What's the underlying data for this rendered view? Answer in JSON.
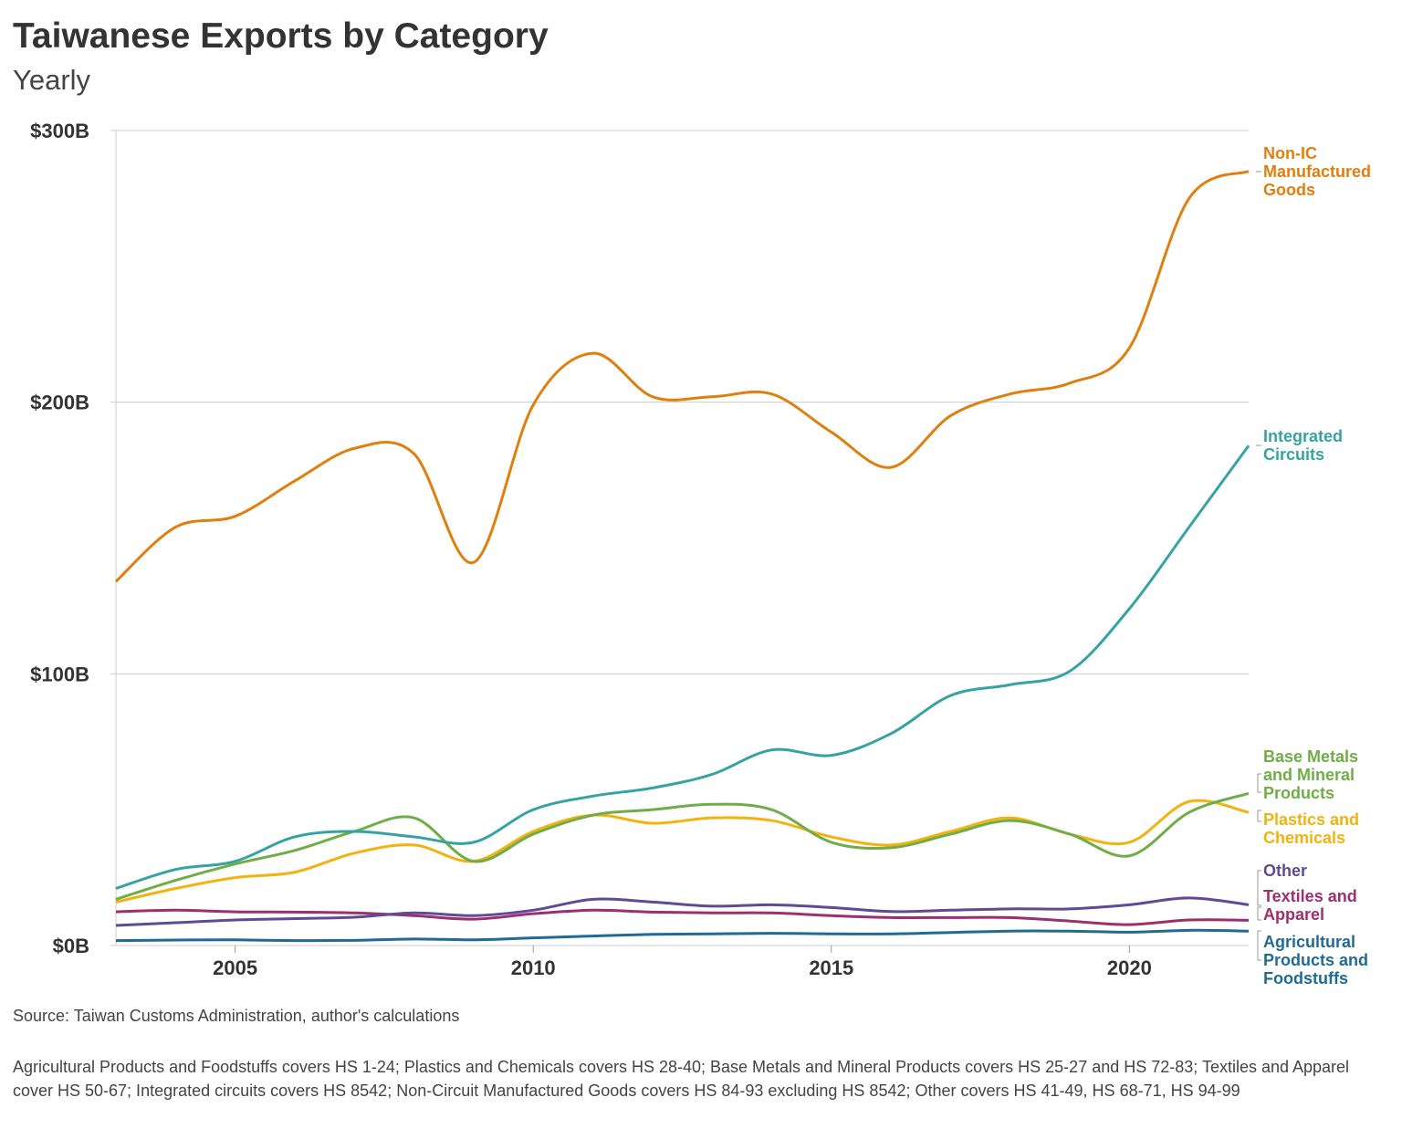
{
  "chart_data": {
    "type": "line",
    "title": "Taiwanese Exports by Category",
    "subtitle": "Yearly",
    "x": [
      2003,
      2004,
      2005,
      2006,
      2007,
      2008,
      2009,
      2010,
      2011,
      2012,
      2013,
      2014,
      2015,
      2016,
      2017,
      2018,
      2019,
      2020,
      2021,
      2022
    ],
    "xticks": [
      "2005",
      "2010",
      "2015",
      "2020"
    ],
    "xtick_values": [
      2005,
      2010,
      2015,
      2020
    ],
    "xlim": [
      2003,
      2022
    ],
    "ylim": [
      0,
      300
    ],
    "yticks": [
      "$0B",
      "$100B",
      "$200B",
      "$300B"
    ],
    "ytick_values": [
      0,
      100,
      200,
      300
    ],
    "grid": "horizontal",
    "legend": "right, inline labels",
    "series": [
      {
        "name": "Non-IC Manufactured Goods",
        "label_lines": [
          "Non-IC",
          "Manufactured",
          "Goods"
        ],
        "color": "#e07f0e",
        "values": [
          134,
          154,
          158,
          171,
          183,
          181,
          141,
          199,
          218,
          202,
          202,
          203,
          189,
          176,
          195,
          203,
          207,
          220,
          275,
          285
        ]
      },
      {
        "name": "Integrated Circuits",
        "label_lines": [
          "Integrated",
          "Circuits"
        ],
        "color": "#36a3a3",
        "values": [
          21,
          28,
          31,
          40,
          42,
          40,
          38,
          50,
          55,
          58,
          63,
          72,
          70,
          78,
          92,
          96,
          101,
          124,
          154,
          184
        ]
      },
      {
        "name": "Base Metals and Mineral Products",
        "label_lines": [
          "Base Metals",
          "and Mineral",
          "Products"
        ],
        "color": "#6fad47",
        "values": [
          17,
          24,
          30,
          35,
          42,
          47,
          31,
          41,
          48,
          50,
          52,
          50,
          38,
          36,
          41,
          46,
          41,
          33,
          49,
          56
        ]
      },
      {
        "name": "Plastics and Chemicals",
        "label_lines": [
          "Plastics and",
          "Chemicals"
        ],
        "color": "#f2b20f",
        "values": [
          16,
          21,
          25,
          27,
          34,
          37,
          31,
          42,
          48,
          45,
          47,
          46,
          40,
          37,
          42,
          47,
          41,
          38,
          53,
          49
        ]
      },
      {
        "name": "Other",
        "label_lines": [
          "Other"
        ],
        "color": "#5f4a95",
        "values": [
          7.4,
          8.4,
          9.4,
          9.9,
          10.4,
          12,
          11,
          13,
          17,
          16,
          14.5,
          15,
          14,
          12.5,
          13,
          13.5,
          13.5,
          15,
          17.5,
          15
        ]
      },
      {
        "name": "Textiles and Apparel",
        "label_lines": [
          "Textiles and",
          "Apparel"
        ],
        "color": "#9e2f6e",
        "values": [
          12.4,
          13,
          12.4,
          12.3,
          12,
          11,
          9.7,
          11.7,
          13,
          12.3,
          12,
          12,
          11,
          10.3,
          10.3,
          10.3,
          9,
          7.7,
          9.4,
          9.3
        ]
      },
      {
        "name": "Agricultural Products and Foodstuffs",
        "label_lines": [
          "Agricultural",
          "Products and",
          "Foodstuffs"
        ],
        "color": "#1f6a96",
        "values": [
          1.8,
          2,
          2.1,
          1.8,
          1.9,
          2.4,
          2.1,
          2.8,
          3.5,
          4.1,
          4.3,
          4.5,
          4.3,
          4.3,
          4.8,
          5.3,
          5.3,
          4.9,
          5.6,
          5.3
        ]
      }
    ]
  },
  "source": "Source: Taiwan Customs Administration, author's calculations",
  "note": "Agricultural Products and Foodstuffs covers HS 1-24; Plastics and Chemicals covers HS 28-40; Base Metals and Mineral Products covers HS 25-27 and HS 72-83; Textiles and Apparel cover HS 50-67; Integrated circuits covers HS 8542; Non-Circuit Manufactured Goods covers HS 84-93 excluding HS 8542; Other covers HS 41-49, HS 68-71, HS 94-99"
}
